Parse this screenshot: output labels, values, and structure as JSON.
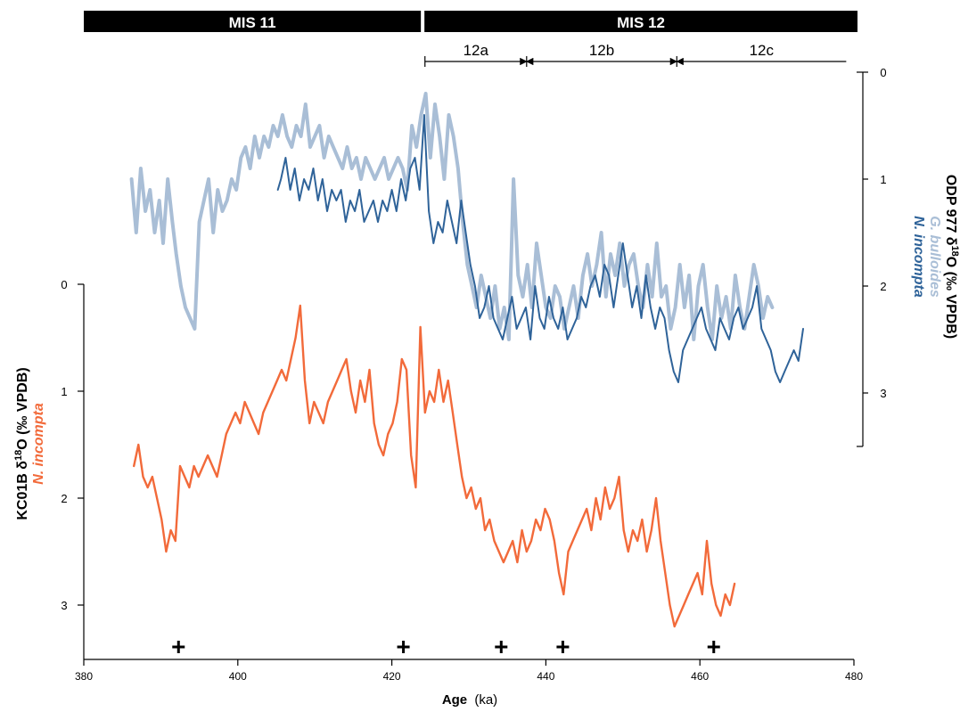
{
  "chart_data": {
    "type": "line",
    "x_axis": {
      "label_bold": "Age",
      "label_unit": "(ka)",
      "range": [
        380,
        480
      ],
      "ticks": [
        380,
        400,
        420,
        440,
        460,
        480
      ]
    },
    "left_axis": {
      "label_main": "KC01B δ",
      "label_sup": "18",
      "label_rest": "O (‰ VPDB)",
      "label_species": "N. incompta",
      "range": [
        0,
        3.5
      ],
      "ticks": [
        0,
        1,
        2,
        3
      ],
      "inverted": true
    },
    "right_axis": {
      "label_main": "ODP 977 δ",
      "label_sup": "18",
      "label_rest": "O (‰ VPDB)",
      "label_species_1": "G. bulloides",
      "label_species_2": "N. incompta",
      "range": [
        0,
        3.5
      ],
      "ticks": [
        0,
        1,
        2,
        3
      ],
      "inverted": true
    },
    "mis_bars": [
      {
        "label": "MIS 11",
        "x_start": 380,
        "x_end": 424
      },
      {
        "label": "MIS 12",
        "x_start": 424,
        "x_end": 481
      }
    ],
    "substages": [
      {
        "label": "12a",
        "x_start": 424.3,
        "x_end": 437.5
      },
      {
        "label": "12b",
        "x_start": 437.5,
        "x_end": 457
      },
      {
        "label": "12c",
        "x_start": 457,
        "x_end": 479
      }
    ],
    "tie_point_markers": [
      392.3,
      421.5,
      434.2,
      442.2,
      461.8
    ],
    "colors": {
      "g_bulloides": "#a9bed6",
      "n_incompta_odp": "#2f6399",
      "n_incompta_kc": "#f26a3a",
      "axes": "#000000"
    },
    "series": [
      {
        "name": "G. bulloides",
        "axis": "right",
        "color": "#a9bed6",
        "x": [
          386.2,
          386.8,
          387.4,
          388.0,
          388.6,
          389.2,
          389.8,
          390.3,
          390.9,
          391.5,
          392.0,
          392.6,
          393.2,
          393.8,
          394.4,
          395.0,
          395.6,
          396.2,
          396.8,
          397.4,
          398.0,
          398.6,
          399.2,
          399.8,
          400.4,
          401.0,
          401.6,
          402.2,
          402.8,
          403.4,
          404.0,
          404.6,
          405.2,
          405.8,
          406.4,
          407.0,
          407.6,
          408.2,
          408.8,
          409.4,
          410.0,
          410.6,
          411.2,
          411.8,
          412.4,
          413.0,
          413.6,
          414.2,
          414.8,
          415.4,
          416.0,
          416.6,
          417.2,
          417.8,
          418.4,
          419.0,
          419.6,
          420.2,
          420.8,
          421.4,
          422.0,
          422.6,
          423.2,
          423.8,
          424.4,
          425.0,
          425.6,
          426.2,
          426.8,
          427.4,
          428.0,
          428.6,
          429.2,
          429.8,
          430.4,
          431.0,
          431.6,
          432.2,
          432.8,
          433.4,
          434.0,
          434.6,
          435.2,
          435.8,
          436.4,
          437.0,
          437.6,
          438.2,
          438.8,
          439.4,
          440.0,
          440.6,
          441.2,
          441.8,
          442.4,
          443.0,
          443.6,
          444.2,
          444.8,
          445.4,
          446.0,
          446.6,
          447.2,
          447.8,
          448.4,
          449.0,
          449.6,
          450.2,
          450.8,
          451.4,
          452.0,
          452.6,
          453.2,
          453.8,
          454.4,
          455.0,
          455.6,
          456.2,
          456.8,
          457.4,
          458.0,
          458.6,
          459.2,
          459.8,
          460.4,
          461.0,
          461.6,
          462.2,
          462.8,
          463.4,
          464.0,
          464.6,
          465.2,
          465.8,
          466.4,
          467.0,
          467.6,
          468.2,
          468.8,
          469.4
        ],
        "y": [
          1.0,
          1.5,
          0.9,
          1.3,
          1.1,
          1.5,
          1.2,
          1.6,
          1.0,
          1.4,
          1.7,
          2.0,
          2.2,
          2.3,
          2.4,
          1.4,
          1.2,
          1.0,
          1.5,
          1.1,
          1.3,
          1.2,
          1.0,
          1.1,
          0.8,
          0.7,
          0.9,
          0.6,
          0.8,
          0.6,
          0.7,
          0.5,
          0.6,
          0.4,
          0.6,
          0.7,
          0.5,
          0.6,
          0.3,
          0.7,
          0.6,
          0.5,
          0.8,
          0.6,
          0.7,
          0.8,
          0.9,
          0.7,
          0.9,
          0.8,
          1.0,
          0.8,
          0.9,
          1.0,
          0.9,
          0.8,
          1.0,
          0.9,
          0.8,
          0.9,
          1.1,
          0.5,
          0.7,
          0.4,
          0.2,
          0.8,
          0.3,
          0.6,
          1.0,
          0.4,
          0.6,
          0.9,
          1.4,
          1.8,
          2.0,
          2.2,
          1.9,
          2.1,
          2.3,
          2.0,
          2.4,
          2.2,
          2.5,
          1.0,
          1.9,
          2.1,
          1.8,
          2.2,
          1.6,
          1.9,
          2.2,
          2.3,
          2.0,
          2.1,
          2.4,
          2.2,
          2.0,
          2.3,
          1.9,
          1.7,
          2.0,
          1.8,
          1.5,
          2.1,
          1.7,
          1.9,
          1.6,
          2.0,
          1.8,
          1.7,
          2.0,
          2.2,
          1.8,
          2.1,
          1.6,
          2.1,
          2.0,
          2.4,
          2.2,
          1.8,
          2.2,
          1.9,
          2.5,
          2.0,
          1.8,
          2.2,
          2.5,
          2.0,
          2.3,
          2.1,
          2.4,
          1.9,
          2.2,
          2.4,
          2.1,
          1.8,
          2.0,
          2.3,
          2.1,
          2.2
        ],
        "y_note": ""
      },
      {
        "name": "N. incompta",
        "axis": "right",
        "color": "#2f6399",
        "x": [
          405.2,
          405.6,
          406.2,
          406.8,
          407.4,
          408.0,
          408.6,
          409.2,
          409.8,
          410.4,
          411.0,
          411.6,
          412.2,
          412.8,
          413.4,
          414.0,
          414.6,
          415.2,
          415.8,
          416.4,
          417.0,
          417.6,
          418.2,
          418.8,
          419.4,
          420.0,
          420.6,
          421.2,
          421.8,
          422.4,
          423.0,
          423.6,
          424.2,
          424.8,
          425.4,
          426.0,
          426.6,
          427.2,
          427.8,
          428.4,
          429.0,
          429.6,
          430.2,
          430.8,
          431.4,
          432.0,
          432.6,
          433.2,
          433.8,
          434.4,
          435.0,
          435.6,
          436.2,
          436.8,
          437.4,
          438.0,
          438.6,
          439.2,
          439.8,
          440.4,
          441.0,
          441.6,
          442.2,
          442.8,
          443.4,
          444.0,
          444.6,
          445.2,
          445.8,
          446.4,
          447.0,
          447.6,
          448.2,
          448.8,
          449.4,
          450.0,
          450.6,
          451.2,
          451.8,
          452.4,
          453.0,
          453.6,
          454.2,
          454.8,
          455.4,
          456.0,
          456.6,
          457.2,
          457.8,
          458.4,
          459.0,
          459.6,
          460.2,
          460.8,
          461.4,
          462.0,
          462.6,
          463.2,
          463.8,
          464.4,
          465.0,
          465.6,
          466.2,
          466.8,
          467.4,
          468.0,
          468.6,
          469.2,
          469.8,
          470.4,
          471.0,
          471.6,
          472.2,
          472.8,
          473.4
        ],
        "y": [
          1.1,
          1.0,
          0.8,
          1.1,
          0.9,
          1.2,
          1.0,
          1.1,
          0.9,
          1.2,
          1.0,
          1.3,
          1.1,
          1.2,
          1.1,
          1.4,
          1.2,
          1.3,
          1.1,
          1.4,
          1.3,
          1.2,
          1.4,
          1.2,
          1.3,
          1.1,
          1.3,
          1.0,
          1.2,
          0.9,
          0.8,
          1.1,
          0.4,
          1.3,
          1.6,
          1.4,
          1.5,
          1.2,
          1.4,
          1.6,
          1.2,
          1.5,
          1.8,
          2.0,
          2.3,
          2.2,
          2.0,
          2.3,
          2.4,
          2.5,
          2.3,
          2.1,
          2.4,
          2.3,
          2.2,
          2.5,
          2.0,
          2.3,
          2.4,
          2.1,
          2.3,
          2.4,
          2.2,
          2.5,
          2.4,
          2.3,
          2.1,
          2.2,
          2.0,
          1.9,
          2.1,
          1.8,
          1.9,
          2.2,
          1.9,
          1.6,
          1.9,
          2.2,
          2.0,
          2.3,
          1.9,
          2.2,
          2.4,
          2.2,
          2.3,
          2.6,
          2.8,
          2.9,
          2.6,
          2.5,
          2.4,
          2.3,
          2.2,
          2.4,
          2.5,
          2.6,
          2.3,
          2.4,
          2.5,
          2.3,
          2.2,
          2.4,
          2.3,
          2.2,
          2.0,
          2.4,
          2.5,
          2.6,
          2.8,
          2.9,
          2.8,
          2.7,
          2.6,
          2.7,
          2.4
        ],
        "y_note": ""
      },
      {
        "name": "N. incompta",
        "axis": "left",
        "color": "#f26a3a",
        "x": [
          386.5,
          387.1,
          387.7,
          388.3,
          388.9,
          389.5,
          390.1,
          390.7,
          391.3,
          391.9,
          392.5,
          393.1,
          393.7,
          394.3,
          394.9,
          395.5,
          396.1,
          396.7,
          397.3,
          397.9,
          398.5,
          399.1,
          399.7,
          400.3,
          400.9,
          401.5,
          402.1,
          402.7,
          403.3,
          403.9,
          404.5,
          405.1,
          405.7,
          406.3,
          406.9,
          407.5,
          408.1,
          408.7,
          409.3,
          409.9,
          410.5,
          411.1,
          411.7,
          412.3,
          412.9,
          413.5,
          414.1,
          414.7,
          415.3,
          415.9,
          416.5,
          417.1,
          417.7,
          418.3,
          418.9,
          419.5,
          420.1,
          420.7,
          421.3,
          421.9,
          422.5,
          423.1,
          423.7,
          424.3,
          424.9,
          425.5,
          426.1,
          426.7,
          427.3,
          427.9,
          428.5,
          429.1,
          429.7,
          430.3,
          430.9,
          431.5,
          432.1,
          432.7,
          433.3,
          433.9,
          434.5,
          435.1,
          435.7,
          436.3,
          436.9,
          437.5,
          438.1,
          438.7,
          439.3,
          439.9,
          440.5,
          441.1,
          441.7,
          442.3,
          442.9,
          443.5,
          444.1,
          444.7,
          445.3,
          445.9,
          446.5,
          447.1,
          447.7,
          448.3,
          448.9,
          449.5,
          450.1,
          450.7,
          451.3,
          451.9,
          452.5,
          453.1,
          453.7,
          454.3,
          454.9,
          455.5,
          456.1,
          456.7,
          457.3,
          457.9,
          458.5,
          459.1,
          459.7,
          460.3,
          460.9,
          461.5,
          462.1,
          462.7,
          463.3,
          463.9,
          464.5
        ],
        "y": [
          1.7,
          1.5,
          1.8,
          1.9,
          1.8,
          2.0,
          2.2,
          2.5,
          2.3,
          2.4,
          1.7,
          1.8,
          1.9,
          1.7,
          1.8,
          1.7,
          1.6,
          1.7,
          1.8,
          1.6,
          1.4,
          1.3,
          1.2,
          1.3,
          1.1,
          1.2,
          1.3,
          1.4,
          1.2,
          1.1,
          1.0,
          0.9,
          0.8,
          0.9,
          0.7,
          0.5,
          0.2,
          0.9,
          1.3,
          1.1,
          1.2,
          1.3,
          1.1,
          1.0,
          0.9,
          0.8,
          0.7,
          1.0,
          1.2,
          0.9,
          1.1,
          0.8,
          1.3,
          1.5,
          1.6,
          1.4,
          1.3,
          1.1,
          0.7,
          0.8,
          1.6,
          1.9,
          0.4,
          1.2,
          1.0,
          1.1,
          0.8,
          1.1,
          0.9,
          1.2,
          1.5,
          1.8,
          2.0,
          1.9,
          2.1,
          2.0,
          2.3,
          2.2,
          2.4,
          2.5,
          2.6,
          2.5,
          2.4,
          2.6,
          2.3,
          2.5,
          2.4,
          2.2,
          2.3,
          2.1,
          2.2,
          2.4,
          2.7,
          2.9,
          2.5,
          2.4,
          2.3,
          2.2,
          2.1,
          2.3,
          2.0,
          2.2,
          1.9,
          2.1,
          2.0,
          1.8,
          2.3,
          2.5,
          2.3,
          2.4,
          2.2,
          2.5,
          2.3,
          2.0,
          2.4,
          2.7,
          3.0,
          3.2,
          3.1,
          3.0,
          2.9,
          2.8,
          2.7,
          2.9,
          2.4,
          2.8,
          3.0,
          3.1,
          2.9,
          3.0,
          2.8
        ],
        "y_note": ""
      }
    ]
  }
}
